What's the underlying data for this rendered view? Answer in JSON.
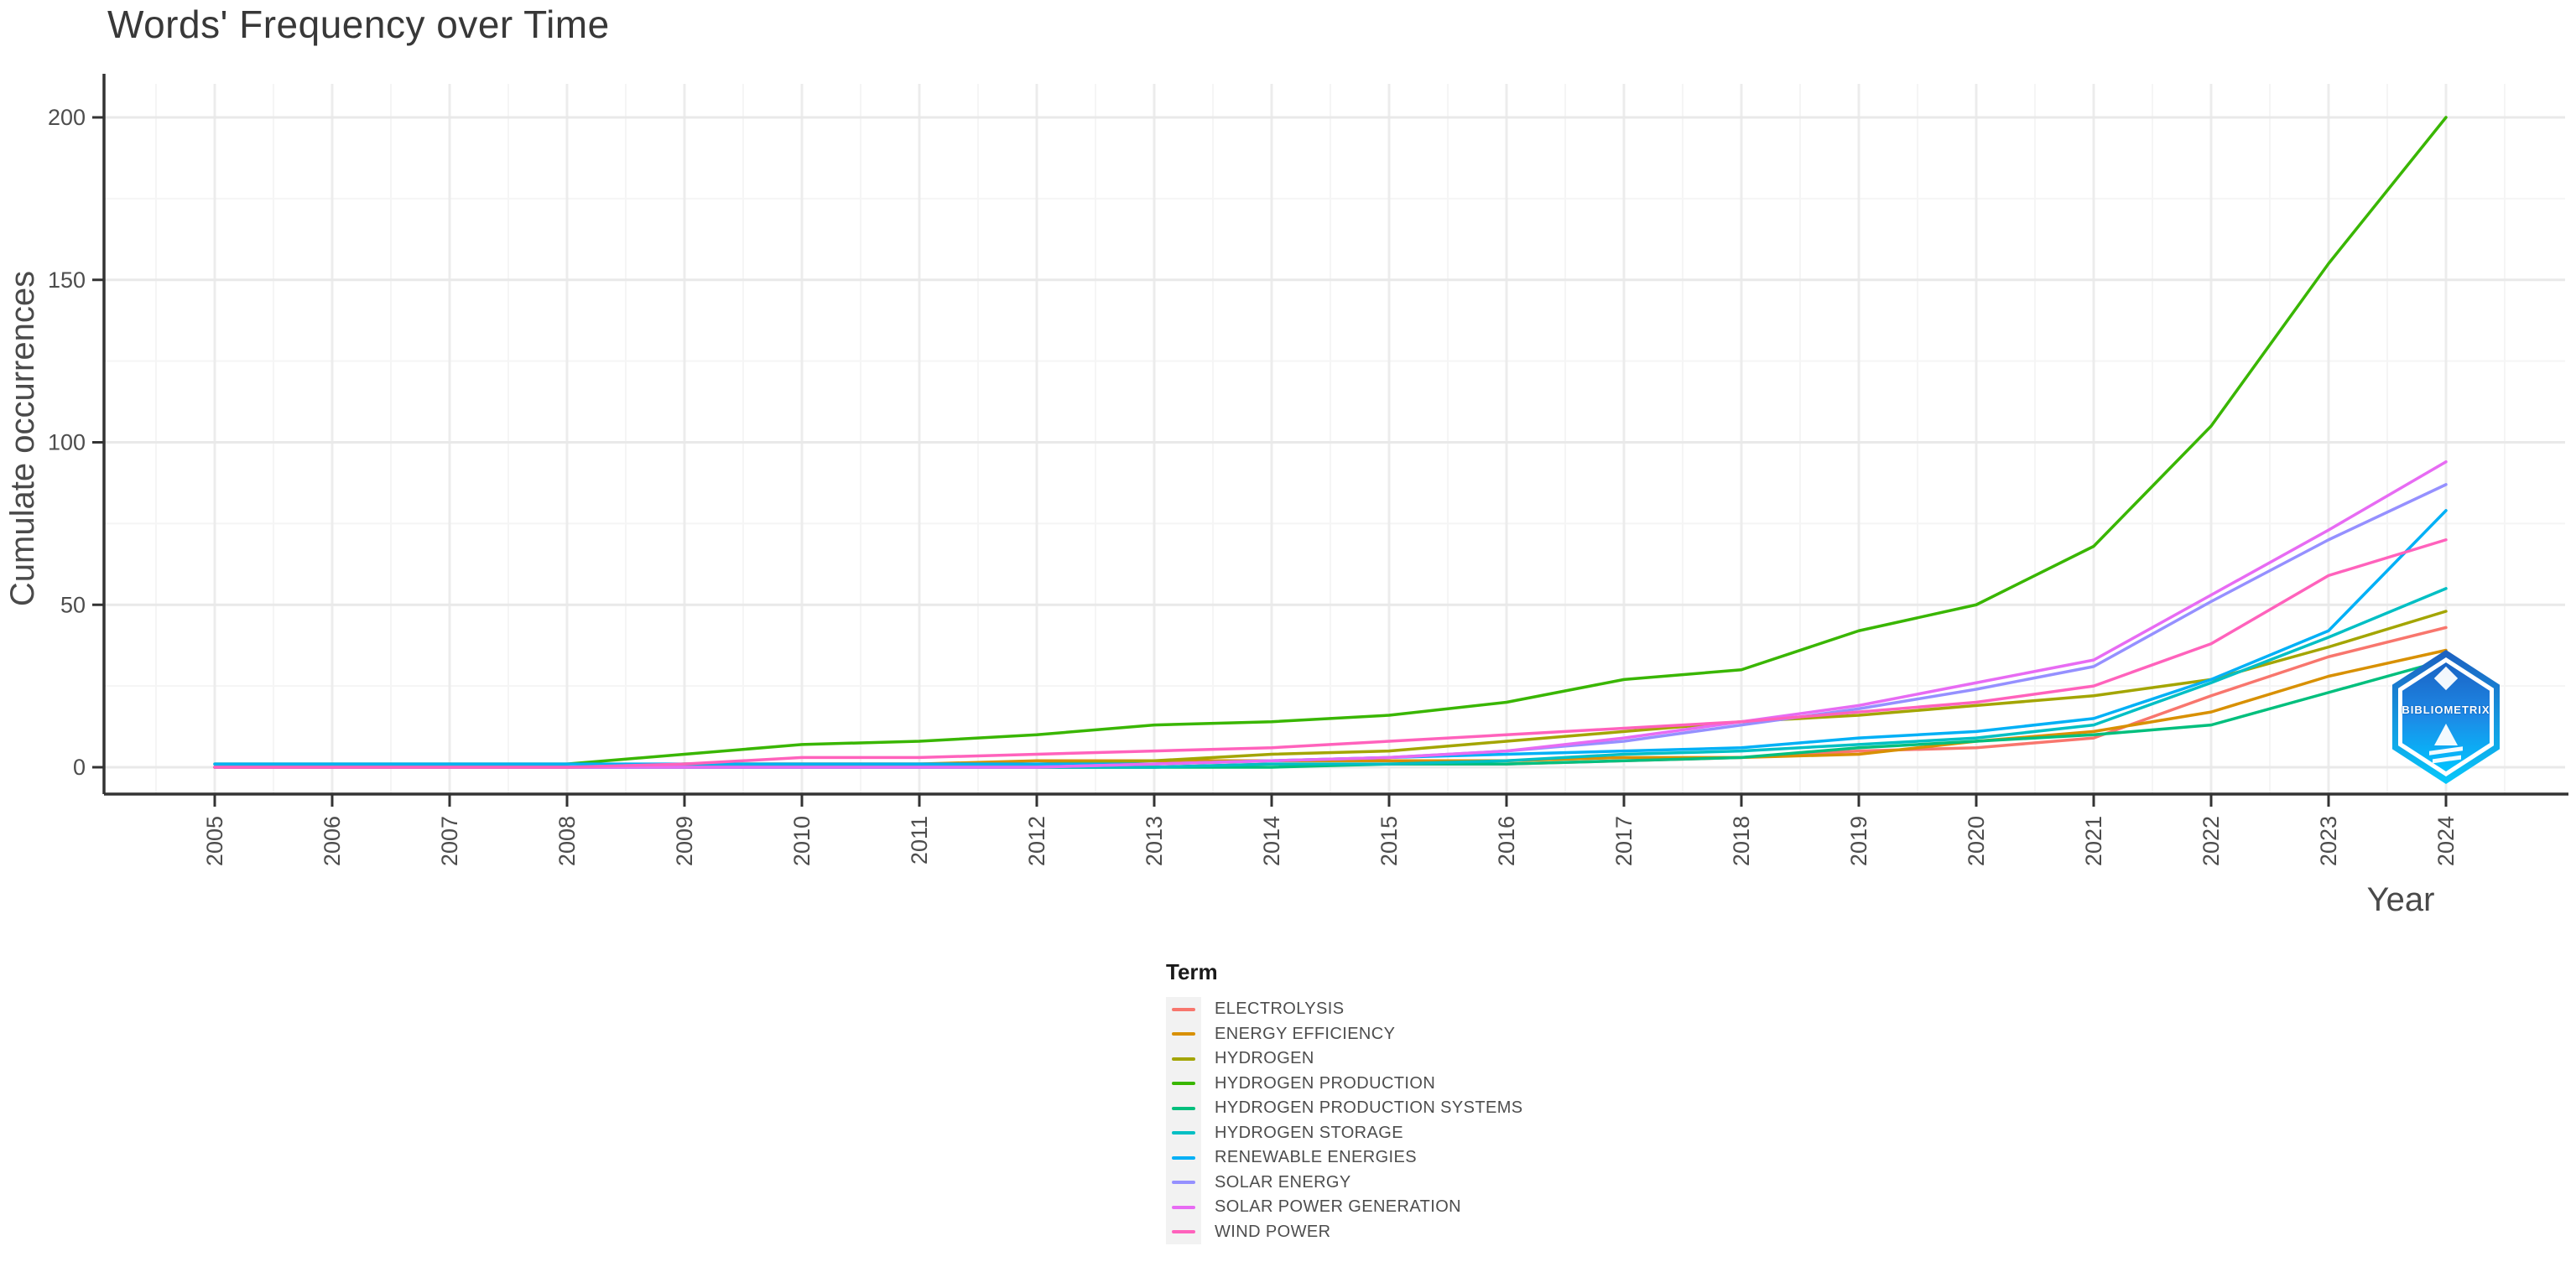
{
  "title": "Words' Frequency over Time",
  "y_axis": {
    "label": "Cumulate occurrences",
    "ticks": [
      0,
      50,
      100,
      150,
      200
    ]
  },
  "x_axis": {
    "label": "Year",
    "ticks": [
      2005,
      2006,
      2007,
      2008,
      2009,
      2010,
      2011,
      2012,
      2013,
      2014,
      2015,
      2016,
      2017,
      2018,
      2019,
      2020,
      2021,
      2022,
      2023,
      2024
    ]
  },
  "legend": {
    "title": "Term"
  },
  "watermark": {
    "text": "BIBLIOMETRIX"
  },
  "chart_data": {
    "type": "line",
    "title": "Words' Frequency over Time",
    "xlabel": "Year",
    "ylabel": "Cumulate occurrences",
    "x": [
      2005,
      2006,
      2007,
      2008,
      2009,
      2010,
      2011,
      2012,
      2013,
      2014,
      2015,
      2016,
      2017,
      2018,
      2019,
      2020,
      2021,
      2022,
      2023,
      2024
    ],
    "ylim": [
      0,
      200
    ],
    "xlim": [
      2004.5,
      2024.5
    ],
    "grid": true,
    "legend_position": "bottom",
    "series": [
      {
        "name": "ELECTROLYSIS",
        "color": "#F8766D",
        "values": [
          0,
          0,
          0,
          0,
          0,
          0,
          0,
          0,
          0,
          1,
          1,
          1,
          2,
          3,
          5,
          6,
          9,
          22,
          34,
          43
        ]
      },
      {
        "name": "ENERGY EFFICIENCY",
        "color": "#D89000",
        "values": [
          0,
          0,
          0,
          0,
          1,
          1,
          1,
          2,
          2,
          2,
          2,
          2,
          3,
          3,
          4,
          8,
          11,
          17,
          28,
          36
        ]
      },
      {
        "name": "HYDROGEN",
        "color": "#A3A500",
        "values": [
          0,
          0,
          0,
          0,
          1,
          1,
          1,
          1,
          2,
          4,
          5,
          8,
          11,
          14,
          16,
          19,
          22,
          27,
          37,
          48
        ]
      },
      {
        "name": "HYDROGEN PRODUCTION",
        "color": "#39B600",
        "values": [
          1,
          1,
          1,
          1,
          4,
          7,
          8,
          10,
          13,
          14,
          16,
          20,
          27,
          30,
          42,
          50,
          68,
          105,
          155,
          200
        ]
      },
      {
        "name": "HYDROGEN PRODUCTION SYSTEMS",
        "color": "#00BF7D",
        "values": [
          0,
          0,
          0,
          0,
          0,
          0,
          0,
          0,
          0,
          0,
          1,
          1,
          2,
          3,
          6,
          8,
          10,
          13,
          23,
          33
        ]
      },
      {
        "name": "HYDROGEN STORAGE",
        "color": "#00BFC4",
        "values": [
          0,
          0,
          0,
          0,
          0,
          0,
          0,
          0,
          0,
          1,
          1,
          2,
          4,
          5,
          7,
          9,
          13,
          26,
          40,
          55
        ]
      },
      {
        "name": "RENEWABLE ENERGIES",
        "color": "#00B0F6",
        "values": [
          1,
          1,
          1,
          1,
          1,
          1,
          1,
          1,
          1,
          2,
          3,
          4,
          5,
          6,
          9,
          11,
          15,
          27,
          42,
          79
        ]
      },
      {
        "name": "SOLAR ENERGY",
        "color": "#9590FF",
        "values": [
          0,
          0,
          0,
          0,
          0,
          0,
          0,
          0,
          1,
          2,
          3,
          5,
          8,
          13,
          18,
          24,
          31,
          51,
          70,
          87
        ]
      },
      {
        "name": "SOLAR POWER GENERATION",
        "color": "#E76BF3",
        "values": [
          0,
          0,
          0,
          0,
          0,
          0,
          0,
          0,
          1,
          2,
          3,
          5,
          9,
          14,
          19,
          26,
          33,
          53,
          73,
          94
        ]
      },
      {
        "name": "WIND POWER",
        "color": "#FF62BC",
        "values": [
          0,
          0,
          0,
          0,
          1,
          3,
          3,
          4,
          5,
          6,
          8,
          10,
          12,
          14,
          17,
          20,
          25,
          38,
          59,
          70
        ]
      }
    ]
  }
}
